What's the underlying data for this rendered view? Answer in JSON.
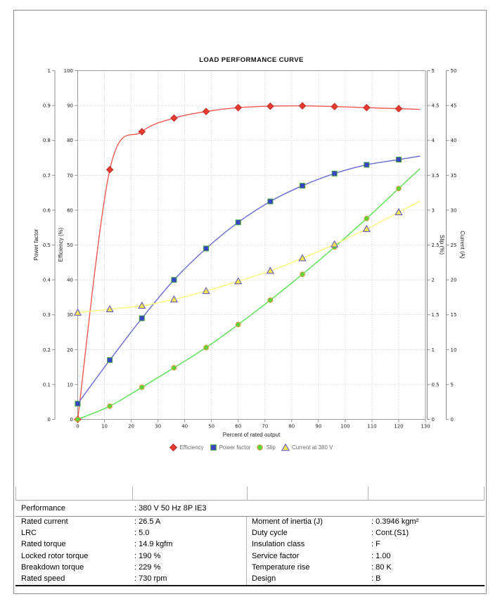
{
  "page_title": "LOAD PERFORMANCE CURVE",
  "chart_data": {
    "type": "line",
    "title": "LOAD PERFORMANCE CURVE",
    "xlabel": "Percent of rated output",
    "grid": true,
    "legend_position": "bottom",
    "x_axis": {
      "min": 0,
      "max": 130,
      "step": 10
    },
    "x": [
      0,
      12,
      24,
      36,
      48,
      60,
      72,
      84,
      96,
      108,
      120
    ],
    "axes": [
      {
        "id": "power_factor",
        "title": "Power factor",
        "min": 0,
        "max": 1,
        "step": 0.1,
        "side": "left"
      },
      {
        "id": "efficiency",
        "title": "Efficiency (%)",
        "min": 0,
        "max": 100,
        "step": 10,
        "side": "left"
      },
      {
        "id": "slip",
        "title": "Slip (%)",
        "min": 0,
        "max": 5,
        "step": 0.5,
        "side": "right"
      },
      {
        "id": "current",
        "title": "Current (A)",
        "min": 0,
        "max": 50,
        "step": 5,
        "side": "right"
      }
    ],
    "series": [
      {
        "name": "Efficiency",
        "axis": "efficiency",
        "marker": "diamond",
        "line_color": "#f25a50",
        "marker_fill": "#e93a31",
        "marker_edge": "#bb2d24",
        "values": [
          0,
          71.6,
          82.5,
          86.4,
          88.3,
          89.4,
          89.8,
          89.9,
          89.7,
          89.4,
          89.1
        ]
      },
      {
        "name": "Power factor",
        "axis": "power_factor",
        "marker": "square",
        "line_color": "#6a6ada",
        "marker_fill": "#3a43c6",
        "marker_edge": "#3fa43f",
        "values": [
          0.045,
          0.17,
          0.29,
          0.4,
          0.49,
          0.565,
          0.625,
          0.67,
          0.705,
          0.73,
          0.745
        ]
      },
      {
        "name": "Slip",
        "axis": "slip",
        "marker": "circle",
        "line_color": "#56e24e",
        "marker_fill": "#57d83c",
        "marker_edge": "#e0922e",
        "values": [
          0,
          0.19,
          0.46,
          0.74,
          1.03,
          1.36,
          1.71,
          2.08,
          2.47,
          2.88,
          3.31
        ]
      },
      {
        "name": "Current at 380 V",
        "axis": "current",
        "marker": "triangle",
        "line_color": "#f7f776",
        "marker_fill": "#f2e44c",
        "marker_edge": "#5752cd",
        "values": [
          15.3,
          15.8,
          16.3,
          17.2,
          18.4,
          19.8,
          21.3,
          23.1,
          25.1,
          27.3,
          29.7
        ]
      }
    ]
  },
  "table": {
    "performance_label": "Performance",
    "performance_value": ": 380 V 50 Hz 8P IE3",
    "rows": [
      {
        "l1": "Rated current",
        "v1": ": 26.5 A",
        "l2": "Moment of inertia (J)",
        "v2": ": 0.3946 kgm²"
      },
      {
        "l1": "LRC",
        "v1": ": 5.0",
        "l2": "Duty cycle",
        "v2": ": Cont.(S1)"
      },
      {
        "l1": "Rated torque",
        "v1": ": 14.9 kgfm",
        "l2": "Insulation class",
        "v2": ": F"
      },
      {
        "l1": "Locked rotor torque",
        "v1": ": 190 %",
        "l2": "Service factor",
        "v2": ": 1.00"
      },
      {
        "l1": "Breakdown torque",
        "v1": ": 229 %",
        "l2": "Temperature rise",
        "v2": ": 80 K"
      },
      {
        "l1": "Rated speed",
        "v1": ": 730 rpm",
        "l2": "Design",
        "v2": ": B"
      }
    ]
  },
  "colors": {
    "grid": "#bfbfbf",
    "plot_border": "#9a9a9a",
    "axis_line": "#8f8f8f",
    "tick_text": "#1c1c1c",
    "legend_text": "#6e6e6e",
    "table_border_dark": "#161616",
    "table_border_light": "#b0b0b0"
  }
}
